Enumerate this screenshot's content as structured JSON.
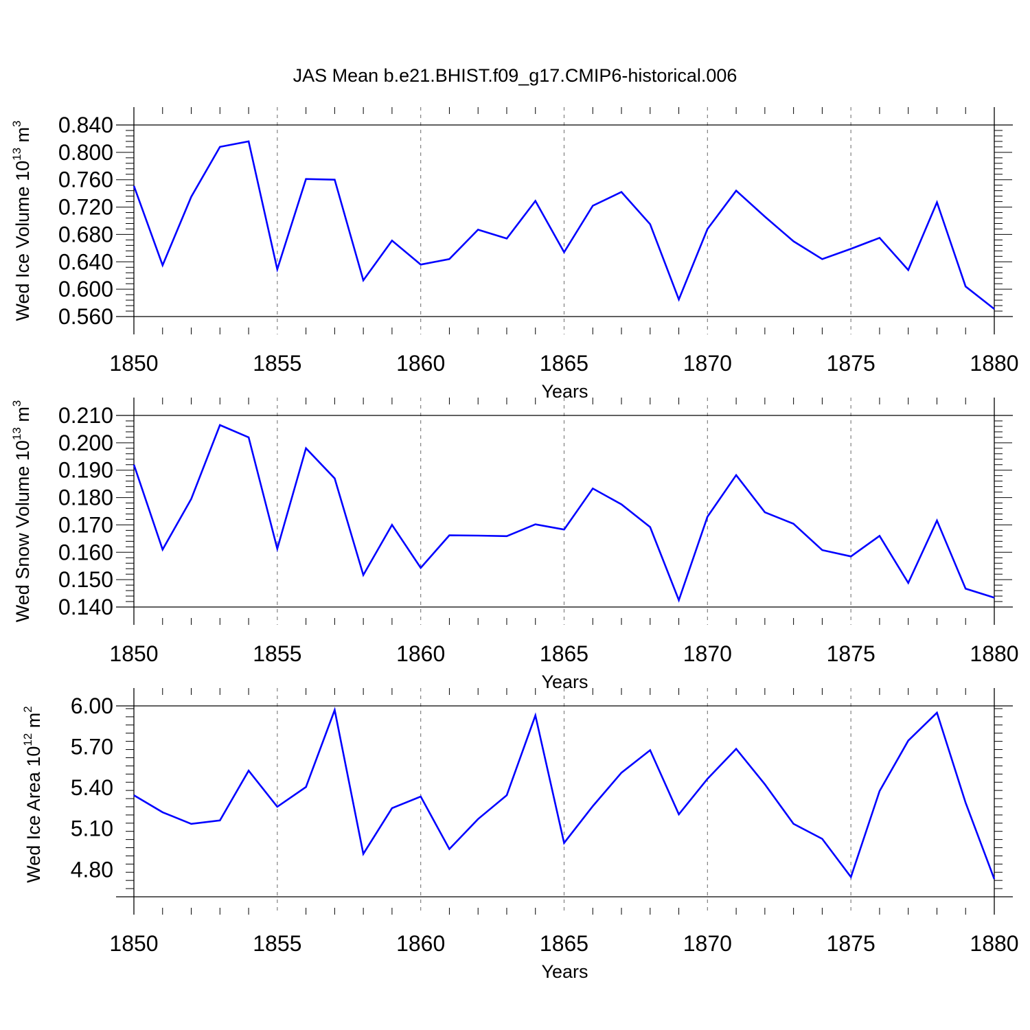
{
  "title": "JAS Mean b.e21.BHIST.f09_g17.CMIP6-historical.006",
  "colors": {
    "line": "#0000ff",
    "axis": "#000000",
    "grid": "#808080",
    "background": "#ffffff"
  },
  "chart_data": [
    {
      "type": "line",
      "ylabel": {
        "main": "Wed Ice Volume 10",
        "exp": "13",
        "unit": " m",
        "unit_exp": "3"
      },
      "xlabel": "Years",
      "xlim": [
        1850,
        1880
      ],
      "ylim": [
        0.56,
        0.84
      ],
      "xticks": [
        "1850",
        "1855",
        "1860",
        "1865",
        "1870",
        "1875",
        "1880"
      ],
      "yticks": [
        "0.560",
        "0.600",
        "0.640",
        "0.680",
        "0.720",
        "0.760",
        "0.800",
        "0.840"
      ],
      "grid_x": true,
      "series": [
        {
          "name": "Wed Ice Volume",
          "x": [
            1850,
            1851,
            1852,
            1853,
            1854,
            1855,
            1856,
            1857,
            1858,
            1859,
            1860,
            1861,
            1862,
            1863,
            1864,
            1865,
            1866,
            1867,
            1868,
            1869,
            1870,
            1871,
            1872,
            1873,
            1874,
            1875,
            1876,
            1877,
            1878,
            1879,
            1880
          ],
          "values": [
            0.751,
            0.635,
            0.735,
            0.808,
            0.816,
            0.629,
            0.761,
            0.76,
            0.613,
            0.671,
            0.636,
            0.644,
            0.687,
            0.674,
            0.729,
            0.654,
            0.722,
            0.742,
            0.695,
            0.585,
            0.688,
            0.744,
            0.706,
            0.67,
            0.644,
            0.659,
            0.675,
            0.628,
            0.727,
            0.604,
            0.571
          ]
        }
      ]
    },
    {
      "type": "line",
      "ylabel": {
        "main": "Wed Snow Volume 10",
        "exp": "13",
        "unit": " m",
        "unit_exp": "3"
      },
      "xlabel": "Years",
      "xlim": [
        1850,
        1880
      ],
      "ylim": [
        0.14,
        0.21
      ],
      "xticks": [
        "1850",
        "1855",
        "1860",
        "1865",
        "1870",
        "1875",
        "1880"
      ],
      "yticks": [
        "0.140",
        "0.150",
        "0.160",
        "0.170",
        "0.180",
        "0.190",
        "0.200",
        "0.210"
      ],
      "grid_x": true,
      "series": [
        {
          "name": "Wed Snow Volume",
          "x": [
            1850,
            1851,
            1852,
            1853,
            1854,
            1855,
            1856,
            1857,
            1858,
            1859,
            1860,
            1861,
            1862,
            1863,
            1864,
            1865,
            1866,
            1867,
            1868,
            1869,
            1870,
            1871,
            1872,
            1873,
            1874,
            1875,
            1876,
            1877,
            1878,
            1879,
            1880
          ],
          "values": [
            0.192,
            0.161,
            0.1795,
            0.2065,
            0.202,
            0.1613,
            0.198,
            0.187,
            0.1517,
            0.17,
            0.1543,
            0.1662,
            0.1661,
            0.1659,
            0.1702,
            0.1683,
            0.1833,
            0.1775,
            0.1692,
            0.1425,
            0.173,
            0.1882,
            0.1746,
            0.1704,
            0.1608,
            0.1585,
            0.166,
            0.1488,
            0.1716,
            0.1467,
            0.1434
          ]
        }
      ]
    },
    {
      "type": "line",
      "ylabel": {
        "main": "Wed Ice Area 10",
        "exp": "12",
        "unit": " m",
        "unit_exp": "2"
      },
      "xlabel": "Years",
      "xlim": [
        1850,
        1880
      ],
      "ylim": [
        4.6,
        6.0
      ],
      "xticks": [
        "1850",
        "1855",
        "1860",
        "1865",
        "1870",
        "1875",
        "1880"
      ],
      "yticks": [
        "4.80",
        "5.10",
        "5.40",
        "5.70",
        "6.00"
      ],
      "ytick_values": [
        4.8,
        5.1,
        5.4,
        5.7,
        6.0
      ],
      "grid_x": true,
      "series": [
        {
          "name": "Wed Ice Area",
          "x": [
            1850,
            1851,
            1852,
            1853,
            1854,
            1855,
            1856,
            1857,
            1858,
            1859,
            1860,
            1861,
            1862,
            1863,
            1864,
            1865,
            1866,
            1867,
            1868,
            1869,
            1870,
            1871,
            1872,
            1873,
            1874,
            1875,
            1876,
            1877,
            1878,
            1879,
            1880
          ],
          "values": [
            5.345,
            5.22,
            5.135,
            5.16,
            5.525,
            5.26,
            5.405,
            5.97,
            4.915,
            5.25,
            5.335,
            4.95,
            5.17,
            5.345,
            5.93,
            4.995,
            5.265,
            5.51,
            5.675,
            5.205,
            5.465,
            5.685,
            5.425,
            5.135,
            5.025,
            4.745,
            5.375,
            5.745,
            5.95,
            5.29,
            4.73
          ]
        }
      ]
    }
  ]
}
